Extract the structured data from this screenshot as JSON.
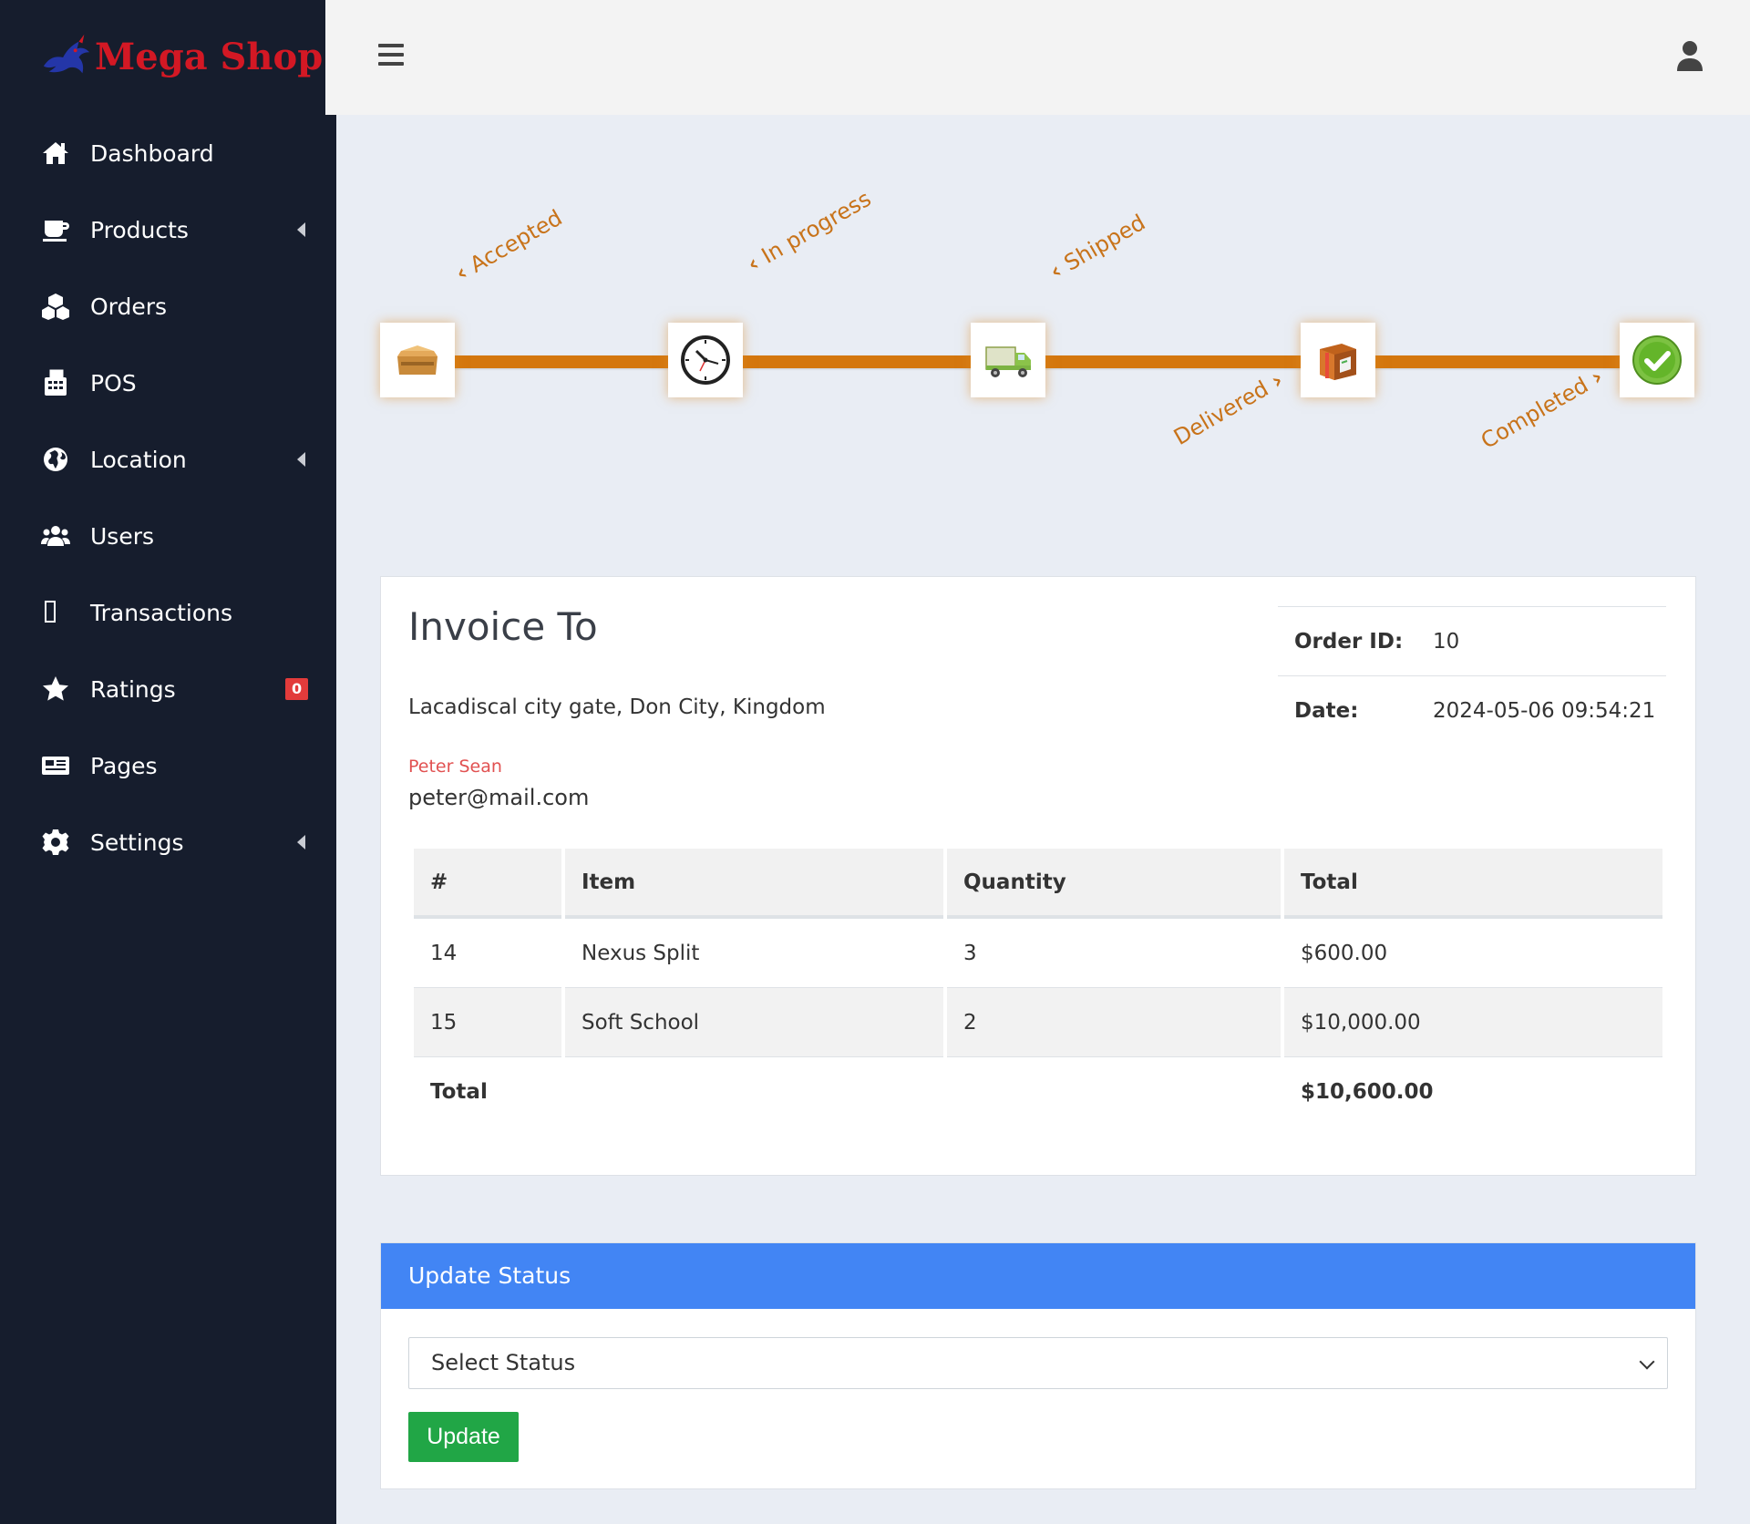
{
  "sidebar": {
    "logo_text": "Mega Shop",
    "items": [
      {
        "label": "Dashboard",
        "icon": "home-icon"
      },
      {
        "label": "Products",
        "icon": "cup-icon",
        "has_caret": true
      },
      {
        "label": "Orders",
        "icon": "cubes-icon"
      },
      {
        "label": "POS",
        "icon": "cash-register-icon"
      },
      {
        "label": "Location",
        "icon": "globe-icon",
        "has_caret": true
      },
      {
        "label": "Users",
        "icon": "users-icon"
      },
      {
        "label": "Transactions",
        "icon": "missing-glyph-icon"
      },
      {
        "label": "Ratings",
        "icon": "star-icon",
        "badge": "0"
      },
      {
        "label": "Pages",
        "icon": "newspaper-icon"
      },
      {
        "label": "Settings",
        "icon": "cog-icon",
        "has_caret": true
      }
    ]
  },
  "topbar": {
    "menu_icon": "hamburger-icon",
    "user_icon": "user-icon"
  },
  "tracker": {
    "steps": [
      {
        "label": "Accepted",
        "icon": "open-box-icon"
      },
      {
        "label": "In progress",
        "icon": "clock-icon"
      },
      {
        "label": "Shipped",
        "icon": "truck-icon"
      },
      {
        "label": "Delivered",
        "icon": "gift-package-icon"
      },
      {
        "label": "Completed",
        "icon": "check-circle-icon"
      }
    ],
    "accent_color": "#d4770e"
  },
  "invoice": {
    "title": "Invoice To",
    "address": "Lacadiscal city gate, Don City, Kingdom",
    "customer_name": "Peter Sean",
    "email": "peter@mail.com",
    "order_id_label": "Order ID:",
    "order_id": "10",
    "date_label": "Date:",
    "date": "2024-05-06 09:54:21",
    "columns": [
      "#",
      "Item",
      "Quantity",
      "Total"
    ],
    "rows": [
      {
        "id": "14",
        "item": "Nexus Split",
        "quantity": "3",
        "total": "$600.00"
      },
      {
        "id": "15",
        "item": "Soft School",
        "quantity": "2",
        "total": "$10,000.00"
      }
    ],
    "total_label": "Total",
    "grand_total": "$10,600.00"
  },
  "update_status": {
    "header": "Update Status",
    "select_value": "Select Status",
    "button_label": "Update",
    "header_color": "#4285f4",
    "button_color": "#21a646"
  }
}
